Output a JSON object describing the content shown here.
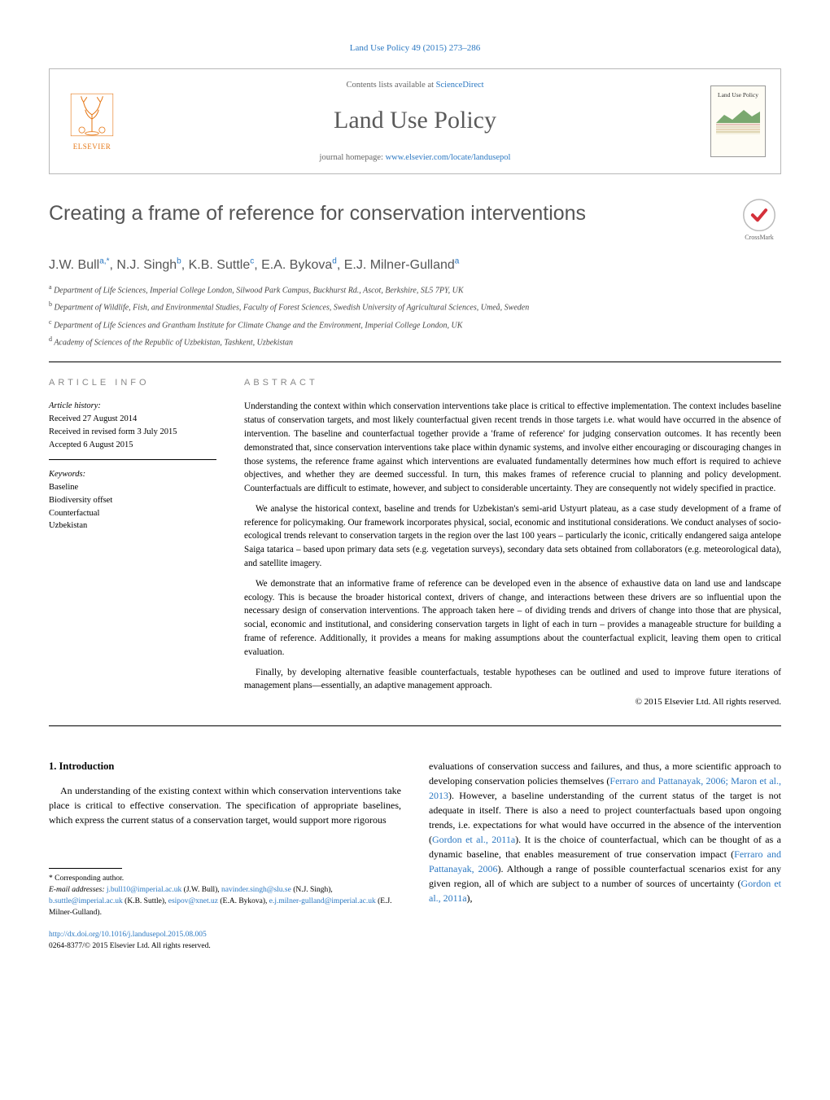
{
  "header": {
    "citation": "Land Use Policy 49 (2015) 273–286",
    "contents_prefix": "Contents lists available at ",
    "contents_link": "ScienceDirect",
    "journal": "Land Use Policy",
    "homepage_prefix": "journal homepage: ",
    "homepage_link": "www.elsevier.com/locate/landusepol",
    "publisher": "ELSEVIER",
    "cover_badge": "",
    "cover_title": "Land Use Policy"
  },
  "colors": {
    "link": "#2b78c2",
    "elsevier": "#e67817",
    "heading_gray": "#555555",
    "rule": "#000000",
    "body_text": "#000000"
  },
  "title": "Creating a frame of reference for conservation interventions",
  "crossmark_label": "CrossMark",
  "authors_html": "J.W. Bull<sup>a,*</sup>, N.J. Singh<sup>b</sup>, K.B. Suttle<sup>c</sup>, E.A. Bykova<sup>d</sup>, E.J. Milner-Gulland<sup>a</sup>",
  "affiliations": [
    {
      "key": "a",
      "text": "Department of Life Sciences, Imperial College London, Silwood Park Campus, Buckhurst Rd., Ascot, Berkshire, SL5 7PY, UK"
    },
    {
      "key": "b",
      "text": "Department of Wildlife, Fish, and Environmental Studies, Faculty of Forest Sciences, Swedish University of Agricultural Sciences, Umeå, Sweden"
    },
    {
      "key": "c",
      "text": "Department of Life Sciences and Grantham Institute for Climate Change and the Environment, Imperial College London, UK"
    },
    {
      "key": "d",
      "text": "Academy of Sciences of the Republic of Uzbekistan, Tashkent, Uzbekistan"
    }
  ],
  "article_info": {
    "head": "ARTICLE INFO",
    "history_label": "Article history:",
    "history": [
      "Received 27 August 2014",
      "Received in revised form 3 July 2015",
      "Accepted 6 August 2015"
    ],
    "keywords_label": "Keywords:",
    "keywords": [
      "Baseline",
      "Biodiversity offset",
      "Counterfactual",
      "Uzbekistan"
    ]
  },
  "abstract": {
    "head": "ABSTRACT",
    "paragraphs": [
      "Understanding the context within which conservation interventions take place is critical to effective implementation. The context includes baseline status of conservation targets, and most likely counterfactual given recent trends in those targets i.e. what would have occurred in the absence of intervention. The baseline and counterfactual together provide a 'frame of reference' for judging conservation outcomes. It has recently been demonstrated that, since conservation interventions take place within dynamic systems, and involve either encouraging or discouraging changes in those systems, the reference frame against which interventions are evaluated fundamentally determines how much effort is required to achieve objectives, and whether they are deemed successful. In turn, this makes frames of reference crucial to planning and policy development. Counterfactuals are difficult to estimate, however, and subject to considerable uncertainty. They are consequently not widely specified in practice.",
      "We analyse the historical context, baseline and trends for Uzbekistan's semi-arid Ustyurt plateau, as a case study development of a frame of reference for policymaking. Our framework incorporates physical, social, economic and institutional considerations. We conduct analyses of socio-ecological trends relevant to conservation targets in the region over the last 100 years – particularly the iconic, critically endangered saiga antelope Saiga tatarica – based upon primary data sets (e.g. vegetation surveys), secondary data sets obtained from collaborators (e.g. meteorological data), and satellite imagery.",
      "We demonstrate that an informative frame of reference can be developed even in the absence of exhaustive data on land use and landscape ecology. This is because the broader historical context, drivers of change, and interactions between these drivers are so influential upon the necessary design of conservation interventions. The approach taken here – of dividing trends and drivers of change into those that are physical, social, economic and institutional, and considering conservation targets in light of each in turn – provides a manageable structure for building a frame of reference. Additionally, it provides a means for making assumptions about the counterfactual explicit, leaving them open to critical evaluation.",
      "Finally, by developing alternative feasible counterfactuals, testable hypotheses can be outlined and used to improve future iterations of management plans—essentially, an adaptive management approach."
    ],
    "copyright": "© 2015 Elsevier Ltd. All rights reserved."
  },
  "body": {
    "section_number": "1.",
    "section_title": "Introduction",
    "col_left": "An understanding of the existing context within which conservation interventions take place is critical to effective conservation. The specification of appropriate baselines, which express the current status of a conservation target, would support more rigorous",
    "col_right_parts": [
      {
        "t": "text",
        "v": "evaluations of conservation success and failures, and thus, a more scientific approach to developing conservation policies themselves ("
      },
      {
        "t": "link",
        "v": "Ferraro and Pattanayak, 2006; Maron et al., 2013"
      },
      {
        "t": "text",
        "v": "). However, a baseline understanding of the current status of the target is not adequate in itself. There is also a need to project counterfactuals based upon ongoing trends, i.e. expectations for what would have occurred in the absence of the intervention ("
      },
      {
        "t": "link",
        "v": "Gordon et al., 2011a"
      },
      {
        "t": "text",
        "v": "). It is the choice of counterfactual, which can be thought of as a dynamic baseline, that enables measurement of true conservation impact ("
      },
      {
        "t": "link",
        "v": "Ferraro and Pattanayak, 2006"
      },
      {
        "t": "text",
        "v": "). Although a range of possible counterfactual scenarios exist for any given region, all of which are subject to a number of sources of uncertainty ("
      },
      {
        "t": "link",
        "v": "Gordon et al., 2011a"
      },
      {
        "t": "text",
        "v": "),"
      }
    ]
  },
  "footnotes": {
    "corresponding": "* Corresponding author.",
    "email_label": "E-mail addresses:",
    "emails": [
      {
        "addr": "j.bull10@imperial.ac.uk",
        "who": "(J.W. Bull)"
      },
      {
        "addr": "navinder.singh@slu.se",
        "who": "(N.J. Singh)"
      },
      {
        "addr": "b.suttle@imperial.ac.uk",
        "who": "(K.B. Suttle)"
      },
      {
        "addr": "esipov@xnet.uz",
        "who": "(E.A. Bykova)"
      },
      {
        "addr": "e.j.milner-gulland@imperial.ac.uk",
        "who": "(E.J. Milner-Gulland)"
      }
    ]
  },
  "bottom": {
    "doi": "http://dx.doi.org/10.1016/j.landusepol.2015.08.005",
    "issn_line": "0264-8377/© 2015 Elsevier Ltd. All rights reserved."
  }
}
